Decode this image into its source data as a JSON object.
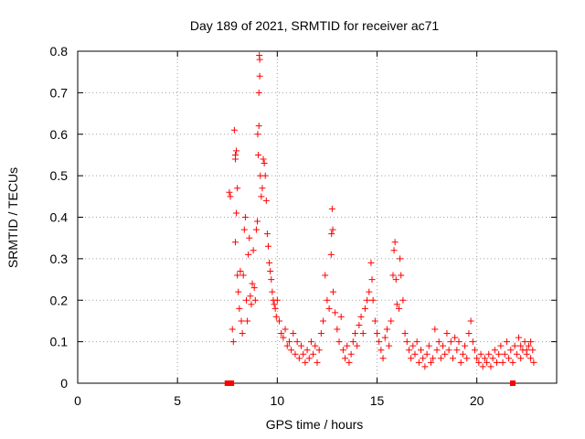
{
  "chart_data": {
    "type": "scatter",
    "title": "Day 189 of 2021, SRMTID for receiver ac71",
    "xlabel": "GPS time / hours",
    "ylabel": "SRMTID / TECUs",
    "xlim": [
      0,
      24
    ],
    "ylim": [
      0,
      0.8
    ],
    "xticks": [
      0,
      5,
      10,
      15,
      20
    ],
    "yticks": [
      0,
      0.1,
      0.2,
      0.3,
      0.4,
      0.5,
      0.6,
      0.7,
      0.8
    ],
    "xtick_labels": [
      "0",
      "5",
      "10",
      "15",
      "20"
    ],
    "ytick_labels": [
      "0",
      "0.1",
      "0.2",
      "0.3",
      "0.4",
      "0.5",
      "0.6",
      "0.7",
      "0.8"
    ],
    "grid": true,
    "marker": "+",
    "color": "#ff0000",
    "series": [
      {
        "name": "SRMTID",
        "points": [
          [
            7.6,
            0.46
          ],
          [
            7.65,
            0.45
          ],
          [
            7.75,
            0.13
          ],
          [
            7.8,
            0.1
          ],
          [
            7.85,
            0.61
          ],
          [
            7.9,
            0.55
          ],
          [
            7.95,
            0.56
          ],
          [
            7.9,
            0.54
          ],
          [
            8.0,
            0.47
          ],
          [
            7.95,
            0.41
          ],
          [
            7.9,
            0.34
          ],
          [
            8.0,
            0.26
          ],
          [
            8.05,
            0.22
          ],
          [
            8.1,
            0.18
          ],
          [
            8.15,
            0.27
          ],
          [
            8.2,
            0.15
          ],
          [
            8.25,
            0.12
          ],
          [
            8.3,
            0.26
          ],
          [
            8.35,
            0.37
          ],
          [
            8.4,
            0.4
          ],
          [
            8.45,
            0.2
          ],
          [
            8.5,
            0.15
          ],
          [
            8.55,
            0.31
          ],
          [
            8.6,
            0.35
          ],
          [
            8.65,
            0.21
          ],
          [
            8.7,
            0.19
          ],
          [
            8.75,
            0.24
          ],
          [
            8.8,
            0.32
          ],
          [
            8.85,
            0.23
          ],
          [
            8.9,
            0.2
          ],
          [
            8.95,
            0.37
          ],
          [
            9.0,
            0.39
          ],
          [
            9.02,
            0.6
          ],
          [
            9.05,
            0.55
          ],
          [
            9.08,
            0.62
          ],
          [
            9.1,
            0.79
          ],
          [
            9.12,
            0.78
          ],
          [
            9.12,
            0.74
          ],
          [
            9.08,
            0.7
          ],
          [
            9.15,
            0.5
          ],
          [
            9.2,
            0.45
          ],
          [
            9.25,
            0.47
          ],
          [
            9.3,
            0.54
          ],
          [
            9.35,
            0.53
          ],
          [
            9.4,
            0.5
          ],
          [
            9.45,
            0.44
          ],
          [
            9.5,
            0.36
          ],
          [
            9.55,
            0.33
          ],
          [
            9.6,
            0.29
          ],
          [
            9.65,
            0.27
          ],
          [
            9.7,
            0.25
          ],
          [
            9.75,
            0.22
          ],
          [
            9.8,
            0.2
          ],
          [
            9.85,
            0.19
          ],
          [
            9.9,
            0.18
          ],
          [
            9.95,
            0.16
          ],
          [
            10.0,
            0.2
          ],
          [
            10.1,
            0.15
          ],
          [
            10.2,
            0.12
          ],
          [
            10.3,
            0.11
          ],
          [
            10.4,
            0.13
          ],
          [
            10.5,
            0.09
          ],
          [
            10.6,
            0.1
          ],
          [
            10.7,
            0.08
          ],
          [
            10.8,
            0.12
          ],
          [
            10.9,
            0.07
          ],
          [
            11.0,
            0.1
          ],
          [
            11.1,
            0.06
          ],
          [
            11.2,
            0.09
          ],
          [
            11.3,
            0.07
          ],
          [
            11.4,
            0.05
          ],
          [
            11.5,
            0.08
          ],
          [
            11.6,
            0.06
          ],
          [
            11.7,
            0.1
          ],
          [
            11.8,
            0.07
          ],
          [
            11.9,
            0.09
          ],
          [
            12.0,
            0.05
          ],
          [
            12.1,
            0.08
          ],
          [
            12.2,
            0.12
          ],
          [
            12.3,
            0.15
          ],
          [
            12.4,
            0.26
          ],
          [
            12.5,
            0.2
          ],
          [
            12.6,
            0.18
          ],
          [
            12.7,
            0.31
          ],
          [
            12.72,
            0.36
          ],
          [
            12.75,
            0.42
          ],
          [
            12.78,
            0.37
          ],
          [
            12.8,
            0.22
          ],
          [
            12.9,
            0.17
          ],
          [
            13.0,
            0.13
          ],
          [
            13.1,
            0.1
          ],
          [
            13.2,
            0.16
          ],
          [
            13.3,
            0.08
          ],
          [
            13.4,
            0.06
          ],
          [
            13.5,
            0.09
          ],
          [
            13.6,
            0.05
          ],
          [
            13.7,
            0.07
          ],
          [
            13.8,
            0.1
          ],
          [
            13.9,
            0.12
          ],
          [
            14.0,
            0.09
          ],
          [
            14.1,
            0.14
          ],
          [
            14.2,
            0.16
          ],
          [
            14.3,
            0.12
          ],
          [
            14.4,
            0.18
          ],
          [
            14.5,
            0.2
          ],
          [
            14.6,
            0.22
          ],
          [
            14.7,
            0.29
          ],
          [
            14.75,
            0.25
          ],
          [
            14.8,
            0.2
          ],
          [
            14.9,
            0.15
          ],
          [
            15.0,
            0.12
          ],
          [
            15.1,
            0.1
          ],
          [
            15.2,
            0.08
          ],
          [
            15.3,
            0.06
          ],
          [
            15.4,
            0.11
          ],
          [
            15.5,
            0.13
          ],
          [
            15.6,
            0.09
          ],
          [
            15.7,
            0.15
          ],
          [
            15.8,
            0.26
          ],
          [
            15.85,
            0.32
          ],
          [
            15.9,
            0.34
          ],
          [
            15.95,
            0.25
          ],
          [
            16.0,
            0.19
          ],
          [
            16.1,
            0.18
          ],
          [
            16.15,
            0.3
          ],
          [
            16.2,
            0.26
          ],
          [
            16.3,
            0.2
          ],
          [
            16.4,
            0.12
          ],
          [
            16.5,
            0.1
          ],
          [
            16.6,
            0.08
          ],
          [
            16.7,
            0.06
          ],
          [
            16.8,
            0.09
          ],
          [
            16.9,
            0.07
          ],
          [
            17.0,
            0.1
          ],
          [
            17.1,
            0.05
          ],
          [
            17.2,
            0.08
          ],
          [
            17.3,
            0.06
          ],
          [
            17.4,
            0.04
          ],
          [
            17.5,
            0.07
          ],
          [
            17.6,
            0.09
          ],
          [
            17.7,
            0.05
          ],
          [
            17.8,
            0.06
          ],
          [
            17.9,
            0.13
          ],
          [
            18.0,
            0.08
          ],
          [
            18.1,
            0.1
          ],
          [
            18.2,
            0.06
          ],
          [
            18.3,
            0.09
          ],
          [
            18.4,
            0.07
          ],
          [
            18.5,
            0.12
          ],
          [
            18.6,
            0.08
          ],
          [
            18.7,
            0.1
          ],
          [
            18.8,
            0.06
          ],
          [
            18.9,
            0.11
          ],
          [
            19.0,
            0.08
          ],
          [
            19.1,
            0.1
          ],
          [
            19.2,
            0.05
          ],
          [
            19.3,
            0.07
          ],
          [
            19.4,
            0.09
          ],
          [
            19.5,
            0.06
          ],
          [
            19.6,
            0.12
          ],
          [
            19.7,
            0.15
          ],
          [
            19.8,
            0.1
          ],
          [
            19.9,
            0.08
          ],
          [
            20.0,
            0.06
          ],
          [
            20.1,
            0.05
          ],
          [
            20.2,
            0.07
          ],
          [
            20.3,
            0.04
          ],
          [
            20.4,
            0.06
          ],
          [
            20.5,
            0.05
          ],
          [
            20.6,
            0.07
          ],
          [
            20.7,
            0.04
          ],
          [
            20.8,
            0.06
          ],
          [
            20.9,
            0.08
          ],
          [
            21.0,
            0.05
          ],
          [
            21.1,
            0.07
          ],
          [
            21.2,
            0.09
          ],
          [
            21.3,
            0.05
          ],
          [
            21.4,
            0.07
          ],
          [
            21.5,
            0.1
          ],
          [
            21.6,
            0.06
          ],
          [
            21.7,
            0.08
          ],
          [
            21.8,
            0.05
          ],
          [
            21.9,
            0.09
          ],
          [
            22.0,
            0.07
          ],
          [
            22.1,
            0.11
          ],
          [
            22.2,
            0.06
          ],
          [
            22.3,
            0.08
          ],
          [
            22.4,
            0.1
          ],
          [
            22.5,
            0.07
          ],
          [
            22.6,
            0.09
          ],
          [
            22.7,
            0.06
          ],
          [
            22.8,
            0.08
          ],
          [
            22.85,
            0.05
          ],
          [
            22.7,
            0.1
          ],
          [
            22.5,
            0.08
          ],
          [
            22.2,
            0.09
          ]
        ]
      }
    ],
    "baseline_markers": [
      {
        "x": 7.5,
        "y": 0
      },
      {
        "x": 7.7,
        "y": 0
      },
      {
        "x": 21.8,
        "y": 0
      }
    ]
  }
}
